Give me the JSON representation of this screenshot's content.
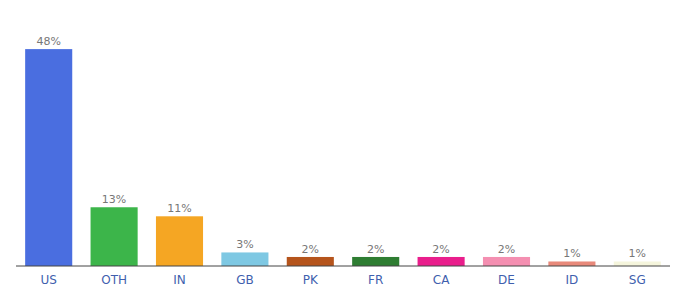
{
  "chart_data": {
    "type": "bar",
    "categories": [
      "US",
      "OTH",
      "IN",
      "GB",
      "PK",
      "FR",
      "CA",
      "DE",
      "ID",
      "SG"
    ],
    "values": [
      48,
      13,
      11,
      3,
      2,
      2,
      2,
      2,
      1,
      1
    ],
    "value_labels": [
      "48%",
      "13%",
      "11%",
      "3%",
      "2%",
      "2%",
      "2%",
      "2%",
      "1%",
      "1%"
    ],
    "colors": [
      "#4a6ee0",
      "#3cb54a",
      "#f5a623",
      "#7ec8e3",
      "#b5541c",
      "#2e7d32",
      "#e91e8c",
      "#f48fb1",
      "#e8897a",
      "#f5f5dc"
    ],
    "ylim": [
      0,
      54
    ],
    "data_labels": true,
    "tick_labels": "x",
    "grid": false
  }
}
